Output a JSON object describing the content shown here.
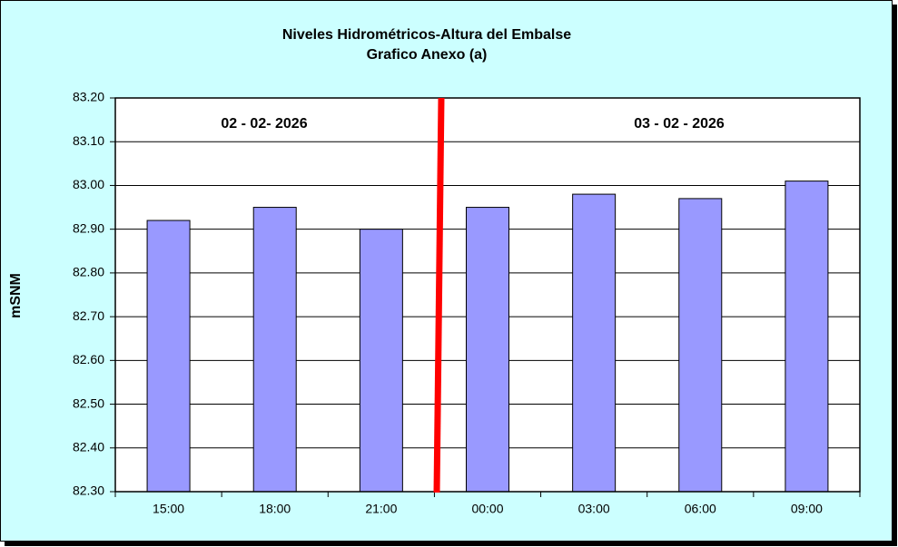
{
  "chart_data": {
    "type": "bar",
    "title": "Niveles Hidrométricos-Altura del Embalse",
    "subtitle": "Grafico Anexo (a)",
    "y_label": "mSNM",
    "annotations": [
      "02 - 02- 2026",
      "03 - 02 - 2026"
    ],
    "categories": [
      "15:00",
      "18:00",
      "21:00",
      "00:00",
      "03:00",
      "06:00",
      "09:00"
    ],
    "values": [
      82.92,
      82.95,
      82.9,
      82.95,
      82.98,
      82.97,
      83.01
    ],
    "color": "#9999ff",
    "ylim": [
      82.3,
      83.2
    ],
    "yticks": [
      {
        "value": 82.3,
        "label": "82.30"
      },
      {
        "value": 82.4,
        "label": "82.40"
      },
      {
        "value": 82.5,
        "label": "82.50"
      },
      {
        "value": 82.6,
        "label": "82.60"
      },
      {
        "value": 82.7,
        "label": "82.70"
      },
      {
        "value": 82.8,
        "label": "82.80"
      },
      {
        "value": 82.9,
        "label": "82.90"
      },
      {
        "value": 83.0,
        "label": "83.00"
      },
      {
        "value": 83.1,
        "label": "83.10"
      },
      {
        "value": 83.2,
        "label": "83.20"
      }
    ],
    "grid": true
  }
}
